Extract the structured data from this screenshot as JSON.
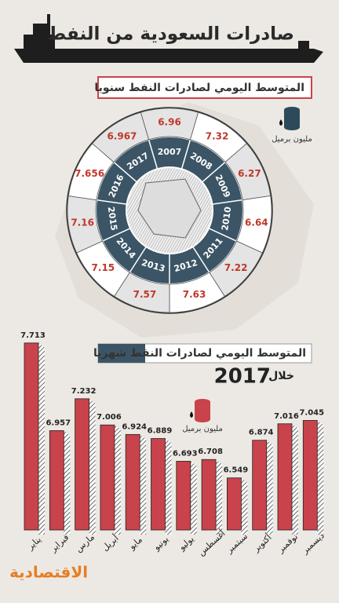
{
  "title": "صادرات السعودية من النفط",
  "brand": "الاقتصادية",
  "chart_data": [
    {
      "type": "radial",
      "title": "المتوسط اليومي لصادرات النفط سنويا",
      "unit": "مليون برميل",
      "categories": [
        "2007",
        "2008",
        "2009",
        "2010",
        "2011",
        "2012",
        "2013",
        "2014",
        "2015",
        "2016",
        "2017"
      ],
      "values": [
        6.96,
        7.32,
        6.27,
        6.64,
        7.22,
        7.63,
        7.57,
        7.15,
        7.16,
        7.656,
        6.967
      ],
      "color": "#3b5566",
      "value_color": "#c0392b"
    },
    {
      "type": "bar",
      "title": "المتوسط اليومي لصادرات النفط شهريا",
      "subtitle": "خلال",
      "year": "2017",
      "unit": "مليون برميل",
      "categories": [
        "يناير",
        "فبراير",
        "مارس",
        "أبريل",
        "مايو",
        "يونيو",
        "يوليو",
        "أغسطس",
        "سبتمبر",
        "أكتوبر",
        "نوفمبر",
        "ديسمبر"
      ],
      "values": [
        7.713,
        6.957,
        7.232,
        7.006,
        6.924,
        6.889,
        6.693,
        6.708,
        6.549,
        6.874,
        7.016,
        7.045
      ],
      "color": "#c8434b",
      "ylim": [
        6.1,
        7.8
      ]
    }
  ]
}
